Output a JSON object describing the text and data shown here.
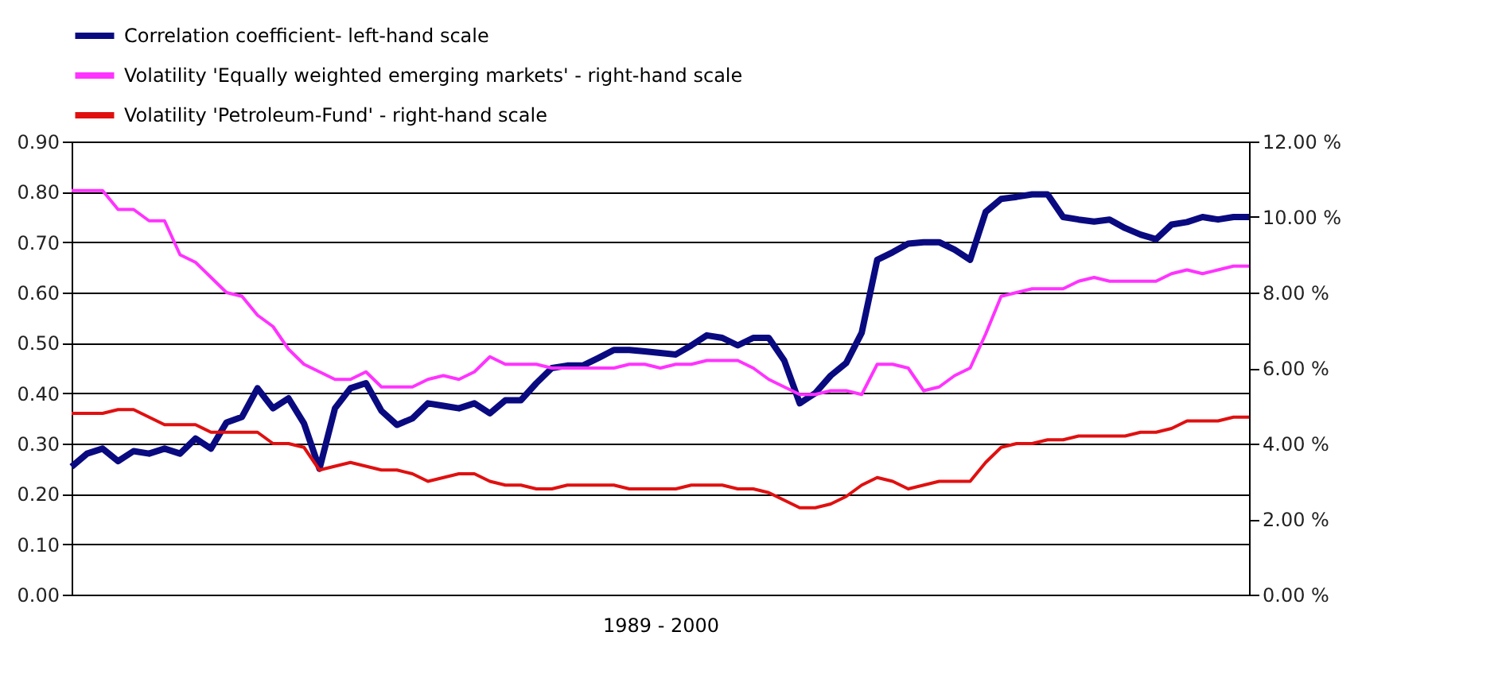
{
  "chart_data": {
    "type": "line",
    "xlabel": "1989 - 2000",
    "categories": [
      null,
      null,
      null,
      null,
      null,
      null,
      null,
      null,
      null,
      null,
      null,
      null,
      null,
      null,
      null,
      null,
      null,
      null,
      null,
      null,
      null,
      null,
      null,
      null,
      null,
      null,
      null,
      null,
      null,
      null,
      null,
      null,
      null,
      null,
      null,
      null,
      null,
      null,
      null,
      null,
      null,
      null,
      null,
      null,
      null,
      null,
      null,
      null,
      null,
      null,
      null,
      null,
      null,
      null,
      null,
      null,
      null,
      null,
      null,
      null,
      null,
      null,
      null,
      null,
      null,
      null,
      null,
      null,
      null,
      null,
      null,
      null,
      null,
      null,
      null,
      null,
      null
    ],
    "series": [
      {
        "name": "Correlation coefficient- left-hand scale",
        "color": "#0a0a80",
        "values": [
          0.254,
          0.28,
          0.29,
          0.265,
          0.285,
          0.28,
          0.29,
          0.28,
          0.31,
          0.29,
          0.342,
          0.353,
          0.41,
          0.37,
          0.39,
          0.34,
          0.25,
          0.37,
          0.41,
          0.42,
          0.365,
          0.337,
          0.35,
          0.38,
          0.375,
          0.37,
          0.38,
          0.36,
          0.386,
          0.386,
          0.42,
          0.45,
          0.455,
          0.455,
          0.47,
          0.486,
          0.486,
          0.483,
          0.48,
          0.477,
          0.495,
          0.515,
          0.51,
          0.495,
          0.51,
          0.51,
          0.465,
          0.38,
          0.4,
          0.435,
          0.46,
          0.52,
          0.665,
          0.68,
          0.697,
          0.7,
          0.7,
          0.685,
          0.665,
          0.76,
          0.786,
          0.79,
          0.795,
          0.795,
          0.75,
          0.745,
          0.741,
          0.745,
          0.728,
          0.715,
          0.706,
          0.735,
          0.74,
          0.75,
          0.745,
          0.75,
          0.75
        ]
      },
      {
        "name": "Volatility 'Equally weighted emerging markets' - right-hand scale",
        "color": "#ff33ff",
        "axis": "y2",
        "values": [
          10.7,
          10.7,
          10.7,
          10.2,
          10.2,
          9.9,
          9.9,
          9.0,
          8.8,
          8.4,
          8.0,
          7.9,
          7.4,
          7.1,
          6.5,
          6.1,
          5.9,
          5.7,
          5.7,
          5.9,
          5.5,
          5.5,
          5.5,
          5.7,
          5.8,
          5.7,
          5.9,
          6.3,
          6.1,
          6.1,
          6.1,
          6.0,
          6.0,
          6.0,
          6.0,
          6.0,
          6.1,
          6.1,
          6.0,
          6.1,
          6.1,
          6.2,
          6.2,
          6.2,
          6.0,
          5.7,
          5.5,
          5.3,
          5.3,
          5.4,
          5.4,
          5.3,
          6.1,
          6.1,
          6.0,
          5.4,
          5.5,
          5.8,
          6.0,
          6.9,
          7.9,
          8.0,
          8.1,
          8.1,
          8.1,
          8.3,
          8.4,
          8.3,
          8.3,
          8.3,
          8.3,
          8.5,
          8.6,
          8.5,
          8.6,
          8.7,
          8.7
        ]
      },
      {
        "name": "Volatility 'Petroleum-Fund' - right-hand scale",
        "color": "#e01010",
        "axis": "y2",
        "values": [
          4.8,
          4.8,
          4.8,
          4.9,
          4.9,
          4.7,
          4.5,
          4.5,
          4.5,
          4.3,
          4.3,
          4.3,
          4.3,
          4.0,
          4.0,
          3.9,
          3.3,
          3.4,
          3.5,
          3.4,
          3.3,
          3.3,
          3.2,
          3.0,
          3.1,
          3.2,
          3.2,
          3.0,
          2.9,
          2.9,
          2.8,
          2.8,
          2.9,
          2.9,
          2.9,
          2.9,
          2.8,
          2.8,
          2.8,
          2.8,
          2.9,
          2.9,
          2.9,
          2.8,
          2.8,
          2.7,
          2.5,
          2.3,
          2.3,
          2.4,
          2.6,
          2.9,
          3.1,
          3.0,
          2.8,
          2.9,
          3.0,
          3.0,
          3.0,
          3.5,
          3.9,
          4.0,
          4.0,
          4.1,
          4.1,
          4.2,
          4.2,
          4.2,
          4.2,
          4.3,
          4.3,
          4.4,
          4.6,
          4.6,
          4.6,
          4.7,
          4.7
        ]
      }
    ],
    "ylim": [
      0,
      0.9
    ],
    "yticks": [
      {
        "value": 0,
        "label": "0.00"
      },
      {
        "value": 0.1,
        "label": "0.10"
      },
      {
        "value": 0.2,
        "label": "0.20"
      },
      {
        "value": 0.3,
        "label": "0.30"
      },
      {
        "value": 0.4,
        "label": "0.40"
      },
      {
        "value": 0.5,
        "label": "0.50"
      },
      {
        "value": 0.6,
        "label": "0.60"
      },
      {
        "value": 0.7,
        "label": "0.70"
      },
      {
        "value": 0.8,
        "label": "0.80"
      },
      {
        "value": 0.9,
        "label": "0.90"
      }
    ],
    "y2lim": [
      0,
      12
    ],
    "y2ticks": [
      {
        "value": 0,
        "label": "0.00 %"
      },
      {
        "value": 2,
        "label": "2.00 %"
      },
      {
        "value": 4,
        "label": "4.00 %"
      },
      {
        "value": 6,
        "label": "6.00 %"
      },
      {
        "value": 8,
        "label": "8.00 %"
      },
      {
        "value": 10,
        "label": "10.00 %"
      },
      {
        "value": 12,
        "label": "12.00 %"
      }
    ],
    "grid": "y",
    "legend": "top",
    "marker": "none",
    "line_style": "solid"
  }
}
